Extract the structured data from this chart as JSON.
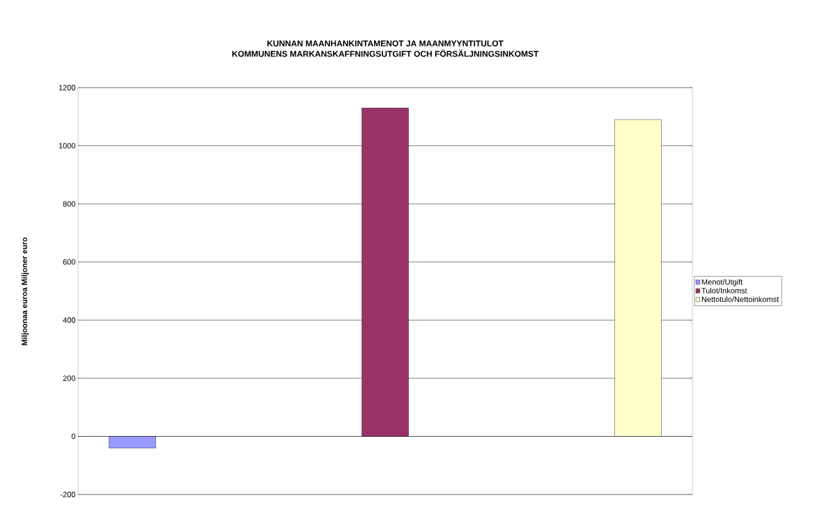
{
  "chart_data": {
    "type": "bar",
    "title": "KUNNAN MAANHANKINTAMENOT JA MAANMYYNTITULOT",
    "subtitle": "KOMMUNENS MARKANSKAFFNINGSUTGIFT OCH FÖRSÄLJNINGSINKOMST",
    "ylabel": "Miljoonaa euroa Miljoner euro",
    "categories": [
      null
    ],
    "series": [
      {
        "name": "Menot/Utgift",
        "color": "#9999ff",
        "values": [
          -40
        ]
      },
      {
        "name": "Tulot/Inkomst",
        "color": "#993366",
        "values": [
          1130
        ]
      },
      {
        "name": "Nettotulo/Nettoinkomst",
        "color": "#ffffcc",
        "values": [
          1090
        ]
      }
    ],
    "ylim": [
      -200,
      1200
    ],
    "yticks": [
      -200,
      0,
      200,
      400,
      600,
      800,
      1000,
      1200
    ],
    "grid": "y",
    "legend": "right",
    "tick_labels": "y"
  }
}
